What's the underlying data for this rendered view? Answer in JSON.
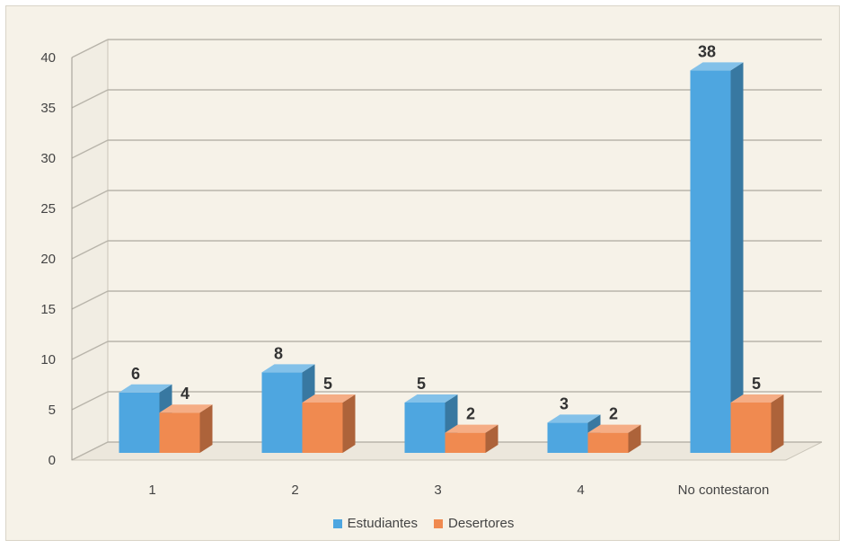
{
  "chart_data": {
    "type": "bar",
    "categories": [
      "1",
      "2",
      "3",
      "4",
      "No contestaron"
    ],
    "series": [
      {
        "name": "Estudiantes",
        "values": [
          6,
          8,
          5,
          3,
          38
        ],
        "color": "#4ea6e0"
      },
      {
        "name": "Desertores",
        "values": [
          4,
          5,
          2,
          2,
          5
        ],
        "color": "#f08a50"
      }
    ],
    "y_ticks": [
      "0",
      "5",
      "10",
      "15",
      "20",
      "25",
      "30",
      "35",
      "40"
    ],
    "ylim": [
      0,
      40
    ],
    "data_labels": true,
    "grid": true,
    "legend_position": "bottom",
    "style": "3d-clustered-column"
  }
}
